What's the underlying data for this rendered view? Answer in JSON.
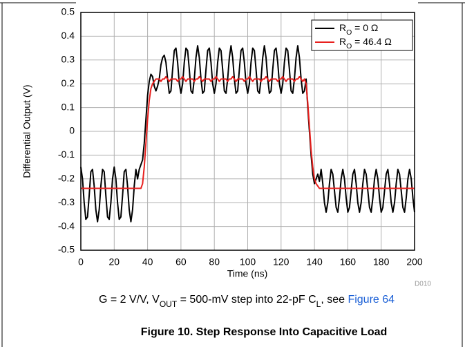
{
  "chart_data": {
    "type": "line",
    "ylabel": "Differential Output (V)",
    "xlabel": "Time (ns)",
    "code": "D010",
    "caption": [
      "G = 2 V/V, V",
      "OUT",
      " = 500-mV step into 22-pF C",
      "L",
      ", see "
    ],
    "caption_link": "Figure 64",
    "figure_title": "Figure 10. Step Response Into Capacitive Load",
    "xlim": [
      0,
      200
    ],
    "xticks": [
      0,
      20,
      40,
      60,
      80,
      100,
      120,
      140,
      160,
      180,
      200
    ],
    "ylim": [
      -0.5,
      0.5
    ],
    "yticks": [
      -0.5,
      -0.4,
      -0.3,
      -0.2,
      -0.1,
      0,
      0.1,
      0.2,
      0.3,
      0.4,
      0.5
    ],
    "grid": true,
    "legend": "upper right",
    "x": [
      0,
      1,
      2,
      3,
      4,
      5,
      6,
      7,
      8,
      9,
      10,
      11,
      12,
      13,
      14,
      15,
      16,
      17,
      18,
      19,
      20,
      21,
      22,
      23,
      24,
      25,
      26,
      27,
      28,
      29,
      30,
      31,
      32,
      33,
      34,
      35,
      36,
      37,
      38,
      39,
      40,
      41,
      42,
      43,
      44,
      45,
      46,
      47,
      48,
      49,
      50,
      51,
      52,
      53,
      54,
      55,
      56,
      57,
      58,
      59,
      60,
      61,
      62,
      63,
      64,
      65,
      66,
      67,
      68,
      69,
      70,
      71,
      72,
      73,
      74,
      75,
      76,
      77,
      78,
      79,
      80,
      81,
      82,
      83,
      84,
      85,
      86,
      87,
      88,
      89,
      90,
      91,
      92,
      93,
      94,
      95,
      96,
      97,
      98,
      99,
      100,
      101,
      102,
      103,
      104,
      105,
      106,
      107,
      108,
      109,
      110,
      111,
      112,
      113,
      114,
      115,
      116,
      117,
      118,
      119,
      120,
      121,
      122,
      123,
      124,
      125,
      126,
      127,
      128,
      129,
      130,
      131,
      132,
      133,
      134,
      135,
      136,
      137,
      138,
      139,
      140,
      141,
      142,
      143,
      144,
      145,
      146,
      147,
      148,
      149,
      150,
      151,
      152,
      153,
      154,
      155,
      156,
      157,
      158,
      159,
      160,
      161,
      162,
      163,
      164,
      165,
      166,
      167,
      168,
      169,
      170,
      171,
      172,
      173,
      174,
      175,
      176,
      177,
      178,
      179,
      180,
      181,
      182,
      183,
      184,
      185,
      186,
      187,
      188,
      189,
      190,
      191,
      192,
      193,
      194,
      195,
      196,
      197,
      198,
      199,
      200
    ],
    "series": [
      {
        "name": [
          "R",
          "O",
          " = 0 Ω"
        ],
        "color": "#000000",
        "values": [
          -0.15,
          -0.2,
          -0.3,
          -0.37,
          -0.36,
          -0.27,
          -0.17,
          -0.16,
          -0.23,
          -0.33,
          -0.38,
          -0.33,
          -0.23,
          -0.16,
          -0.17,
          -0.27,
          -0.36,
          -0.37,
          -0.3,
          -0.2,
          -0.15,
          -0.2,
          -0.3,
          -0.37,
          -0.36,
          -0.27,
          -0.17,
          -0.16,
          -0.23,
          -0.33,
          -0.38,
          -0.33,
          -0.23,
          -0.16,
          -0.2,
          -0.16,
          -0.14,
          -0.12,
          -0.05,
          0.05,
          0.15,
          0.21,
          0.24,
          0.23,
          0.19,
          0.17,
          0.19,
          0.22,
          0.28,
          0.31,
          0.32,
          0.29,
          0.22,
          0.16,
          0.17,
          0.26,
          0.34,
          0.35,
          0.29,
          0.2,
          0.16,
          0.2,
          0.29,
          0.35,
          0.34,
          0.26,
          0.17,
          0.16,
          0.22,
          0.31,
          0.36,
          0.31,
          0.22,
          0.16,
          0.17,
          0.26,
          0.34,
          0.35,
          0.29,
          0.2,
          0.16,
          0.2,
          0.29,
          0.35,
          0.34,
          0.26,
          0.17,
          0.16,
          0.22,
          0.31,
          0.36,
          0.31,
          0.22,
          0.16,
          0.17,
          0.26,
          0.34,
          0.35,
          0.29,
          0.2,
          0.16,
          0.2,
          0.29,
          0.35,
          0.34,
          0.26,
          0.17,
          0.16,
          0.22,
          0.31,
          0.36,
          0.31,
          0.22,
          0.16,
          0.17,
          0.26,
          0.34,
          0.35,
          0.29,
          0.2,
          0.16,
          0.2,
          0.29,
          0.35,
          0.34,
          0.26,
          0.17,
          0.16,
          0.22,
          0.31,
          0.36,
          0.31,
          0.22,
          0.16,
          0.17,
          0.22,
          0.1,
          0.0,
          -0.1,
          -0.18,
          -0.22,
          -0.2,
          -0.18,
          -0.21,
          -0.16,
          -0.22,
          -0.3,
          -0.34,
          -0.3,
          -0.22,
          -0.16,
          -0.18,
          -0.25,
          -0.32,
          -0.34,
          -0.28,
          -0.2,
          -0.16,
          -0.2,
          -0.28,
          -0.34,
          -0.32,
          -0.25,
          -0.18,
          -0.16,
          -0.22,
          -0.3,
          -0.34,
          -0.3,
          -0.22,
          -0.16,
          -0.18,
          -0.25,
          -0.32,
          -0.34,
          -0.28,
          -0.2,
          -0.16,
          -0.2,
          -0.28,
          -0.34,
          -0.32,
          -0.25,
          -0.18,
          -0.16,
          -0.22,
          -0.3,
          -0.34,
          -0.3,
          -0.22,
          -0.16,
          -0.18,
          -0.25,
          -0.32,
          -0.34,
          -0.28,
          -0.2,
          -0.16,
          -0.2,
          -0.28,
          -0.34
        ]
      },
      {
        "name": [
          "R",
          "O",
          " = 46.4 Ω"
        ],
        "color": "#e8201e",
        "values": [
          -0.24,
          -0.24,
          -0.24,
          -0.24,
          -0.24,
          -0.24,
          -0.24,
          -0.24,
          -0.24,
          -0.24,
          -0.24,
          -0.24,
          -0.24,
          -0.24,
          -0.24,
          -0.24,
          -0.24,
          -0.24,
          -0.24,
          -0.24,
          -0.24,
          -0.24,
          -0.24,
          -0.24,
          -0.24,
          -0.24,
          -0.24,
          -0.24,
          -0.24,
          -0.24,
          -0.24,
          -0.24,
          -0.24,
          -0.24,
          -0.24,
          -0.24,
          -0.24,
          -0.22,
          -0.15,
          -0.05,
          0.05,
          0.13,
          0.18,
          0.2,
          0.21,
          0.22,
          0.22,
          0.22,
          0.21,
          0.22,
          0.22,
          0.23,
          0.22,
          0.21,
          0.22,
          0.22,
          0.22,
          0.22,
          0.21,
          0.22,
          0.22,
          0.23,
          0.22,
          0.21,
          0.22,
          0.22,
          0.22,
          0.22,
          0.21,
          0.22,
          0.22,
          0.23,
          0.22,
          0.21,
          0.22,
          0.22,
          0.22,
          0.22,
          0.21,
          0.22,
          0.22,
          0.23,
          0.22,
          0.21,
          0.22,
          0.22,
          0.22,
          0.22,
          0.21,
          0.22,
          0.22,
          0.23,
          0.22,
          0.21,
          0.22,
          0.22,
          0.22,
          0.22,
          0.21,
          0.22,
          0.22,
          0.23,
          0.22,
          0.21,
          0.22,
          0.22,
          0.22,
          0.22,
          0.21,
          0.22,
          0.22,
          0.23,
          0.22,
          0.21,
          0.22,
          0.22,
          0.22,
          0.22,
          0.21,
          0.22,
          0.22,
          0.23,
          0.22,
          0.21,
          0.22,
          0.22,
          0.22,
          0.22,
          0.21,
          0.22,
          0.22,
          0.23,
          0.22,
          0.21,
          0.22,
          0.2,
          0.12,
          0.02,
          -0.08,
          -0.15,
          -0.2,
          -0.22,
          -0.23,
          -0.24,
          -0.24,
          -0.24,
          -0.24,
          -0.24,
          -0.24,
          -0.24,
          -0.24,
          -0.24,
          -0.24,
          -0.24,
          -0.24,
          -0.24,
          -0.24,
          -0.24,
          -0.24,
          -0.24,
          -0.24,
          -0.24,
          -0.24,
          -0.24,
          -0.24,
          -0.24,
          -0.24,
          -0.24,
          -0.24,
          -0.24,
          -0.24,
          -0.24,
          -0.24,
          -0.24,
          -0.24,
          -0.24,
          -0.24,
          -0.24,
          -0.24,
          -0.24,
          -0.24,
          -0.24,
          -0.24,
          -0.24,
          -0.24,
          -0.24,
          -0.24,
          -0.24,
          -0.24,
          -0.24,
          -0.24,
          -0.24,
          -0.24,
          -0.24,
          -0.24,
          -0.24,
          -0.24,
          -0.24,
          -0.24,
          -0.24,
          -0.24
        ]
      }
    ]
  }
}
